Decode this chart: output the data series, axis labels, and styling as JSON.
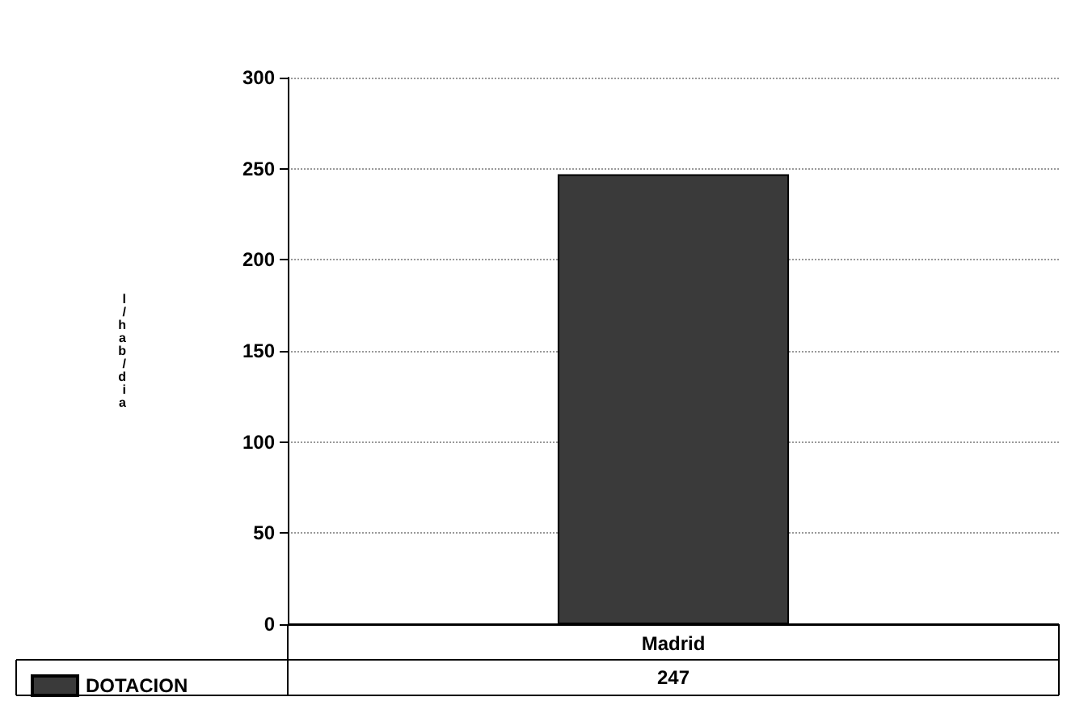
{
  "chart_data": {
    "type": "bar",
    "ylabel": "l/hab/dia",
    "categories": [
      "Madrid"
    ],
    "series": [
      {
        "name": "DOTACION",
        "color": "#3a3a3a",
        "values": [
          247
        ]
      }
    ],
    "ylim": [
      0,
      300
    ],
    "yticks": [
      0,
      50,
      100,
      150,
      200,
      250,
      300
    ],
    "grid": "y",
    "legend": "bottom",
    "data_labels": true
  }
}
